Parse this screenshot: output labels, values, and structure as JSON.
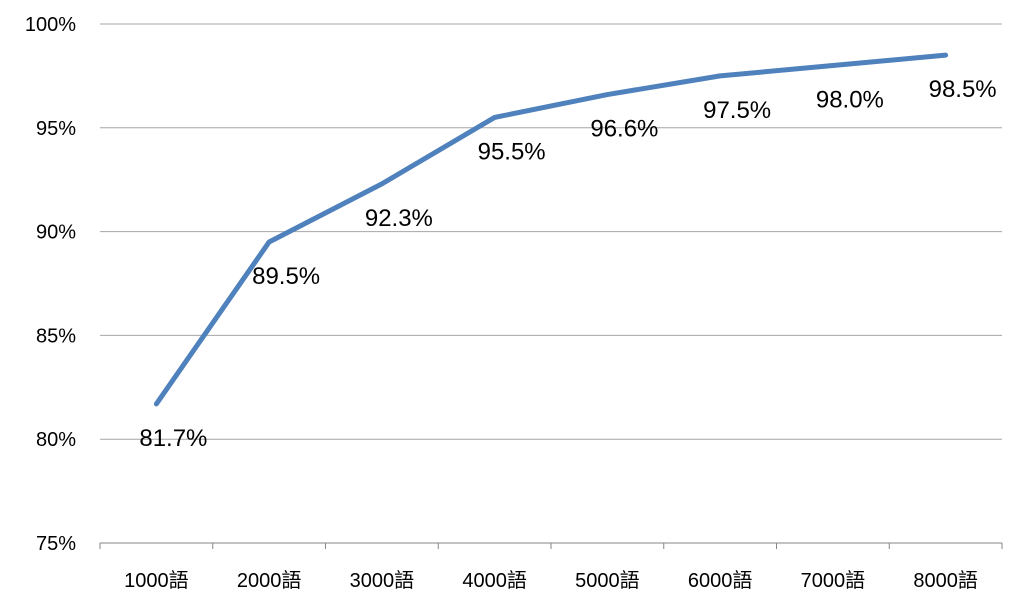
{
  "chart_data": {
    "type": "line",
    "title": "",
    "xlabel": "",
    "ylabel": "",
    "categories": [
      "1000語",
      "2000語",
      "3000語",
      "4000語",
      "5000語",
      "6000語",
      "7000語",
      "8000語"
    ],
    "series": [
      {
        "values": [
          81.7,
          89.5,
          92.3,
          95.5,
          96.6,
          97.5,
          98.0,
          98.5
        ],
        "data_labels": [
          "81.7%",
          "89.5%",
          "92.3%",
          "95.5%",
          "96.6%",
          "97.5%",
          "98.0%",
          "98.5%"
        ],
        "color": "#4f81bd"
      }
    ],
    "ylim": [
      75,
      100
    ],
    "y_ticks": [
      {
        "value": 75,
        "label": "75%"
      },
      {
        "value": 80,
        "label": "80%"
      },
      {
        "value": 85,
        "label": "85%"
      },
      {
        "value": 90,
        "label": "90%"
      },
      {
        "value": 95,
        "label": "95%"
      },
      {
        "value": 100,
        "label": "100%"
      }
    ],
    "grid": true,
    "legend": "none",
    "colors": {
      "line": "#4f81bd",
      "grid": "#a6a6a6",
      "axis": "#868686"
    }
  }
}
